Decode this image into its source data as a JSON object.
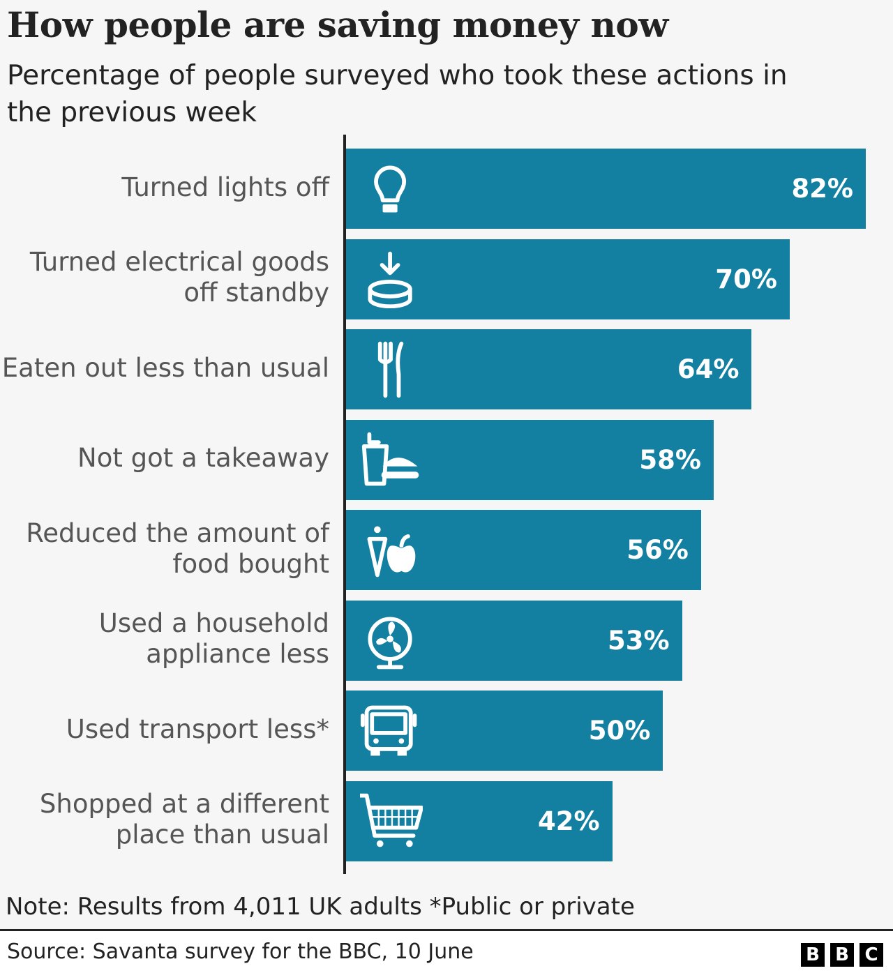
{
  "chart_data": {
    "type": "bar",
    "orientation": "horizontal",
    "title": "How people are saving money now",
    "subtitle": "Percentage of people surveyed who took these actions in the previous week",
    "categories": [
      "Turned lights off",
      "Turned electrical goods\noff standby",
      "Eaten out less than usual",
      "Not got a takeaway",
      "Reduced the amount of\nfood bought",
      "Used a household\nappliance less",
      "Used transport less*",
      "Shopped at a different\nplace than usual"
    ],
    "values": [
      82,
      70,
      64,
      58,
      56,
      53,
      50,
      42
    ],
    "data_labels": [
      "82%",
      "70%",
      "64%",
      "58%",
      "56%",
      "53%",
      "50%",
      "42%"
    ],
    "icons": [
      "lightbulb-icon",
      "standby-plug-icon",
      "cutlery-icon",
      "takeaway-icon",
      "carrot-apple-icon",
      "fan-icon",
      "bus-icon",
      "shopping-cart-icon"
    ],
    "xlim": [
      0,
      100
    ],
    "grid": false,
    "colors": {
      "bar": "#1380a1",
      "background": "#f6f6f6"
    }
  },
  "note": "Note: Results from 4,011 UK adults *Public or private",
  "source": "Source: Savanta survey for the BBC, 10 June",
  "logo": [
    "B",
    "B",
    "C"
  ]
}
